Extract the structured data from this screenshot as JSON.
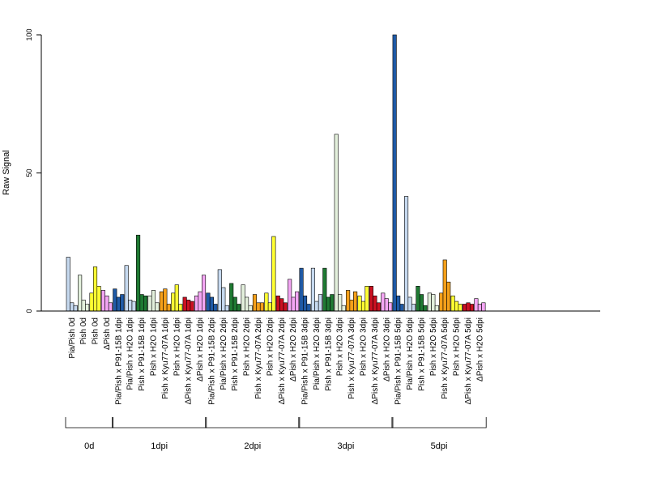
{
  "chart_data": {
    "type": "bar",
    "ylabel": "Raw Signal",
    "ylim": [
      0,
      100
    ],
    "yticks": [
      0,
      50,
      100
    ],
    "grid": false,
    "categories": [
      "Pia/Pish 0d",
      "Pish 0d",
      "Pish 0d",
      "ΔPish 0d",
      "Pia/Pish x P91-15B 1dpi",
      "Pia/Pish x H2O 1dpi",
      "Pish x P91-15B 1dpi",
      "Pish x H2O 1dpi",
      "Pish x Kyu77-07A 1dpi",
      "Pish x H2O 1dpi",
      "ΔPish x Kyu77-07A 1dpi",
      "ΔPish x H2O 1dpi",
      "Pia/Pish x P91-15B 2dpi",
      "Pia/Pish x H2O 2dpi",
      "Pish x P91-15B 2dpi",
      "Pish x H2O 2dpi",
      "Pish x Kyu77-07A 2dpi",
      "Pish x H2O 2dpi",
      "ΔPish x Kyu77-07A 2dpi",
      "ΔPish x H2O 2dpi",
      "Pia/Pish x P91-15B 3dpi",
      "Pia/Pish x H2O 3dpi",
      "Pish x P91-15B 3dpi",
      "Pish x H2O 3dpi",
      "Pish x Kyu77-07A 3dpi",
      "Pish x H2O 3dpi",
      "ΔPish x Kyu77-07A 3dpi",
      "ΔPish x H2O 3dpi",
      "Pia/Pish x P91-15B 5dpi",
      "Pia/Pish x H2O 5dpi",
      "Pish x P91-15B 5dpi",
      "Pish x H2O 5dpi",
      "Pish x Kyu77-07A 5dpi",
      "Pish x H2O 5dpi",
      "ΔPish x Kyu77-07A 5dpi",
      "ΔPish x H2O 5dpi"
    ],
    "colors": [
      "#c6d9ef",
      "#e3f0dc",
      "#ffff33",
      "#f4a6f4",
      "#1f5aa6",
      "#c6d9ef",
      "#1f7a33",
      "#e3f0dc",
      "#f5a01a",
      "#ffff33",
      "#cc1122",
      "#f4a6f4",
      "#1f5aa6",
      "#c6d9ef",
      "#1f7a33",
      "#e3f0dc",
      "#f5a01a",
      "#ffff33",
      "#cc1122",
      "#f4a6f4",
      "#1f5aa6",
      "#c6d9ef",
      "#1f7a33",
      "#e3f0dc",
      "#f5a01a",
      "#ffff33",
      "#cc1122",
      "#f4a6f4",
      "#1f5aa6",
      "#c6d9ef",
      "#1f7a33",
      "#e3f0dc",
      "#f5a01a",
      "#ffff33",
      "#cc1122",
      "#f4a6f4"
    ],
    "values": [
      [
        19.5,
        3,
        2
      ],
      [
        13,
        4,
        2.5
      ],
      [
        6.5,
        16,
        9
      ],
      [
        7.5,
        5.5,
        3
      ],
      [
        8,
        5,
        6
      ],
      [
        16.5,
        4,
        3.5
      ],
      [
        27.5,
        6,
        5.5
      ],
      [
        5.5,
        7.5,
        3
      ],
      [
        7,
        8,
        2.5
      ],
      [
        6.5,
        9.5,
        2.5
      ],
      [
        5,
        4,
        3.5
      ],
      [
        5.5,
        7,
        13
      ],
      [
        6.5,
        5,
        2.5
      ],
      [
        15,
        8.5,
        2
      ],
      [
        10,
        5,
        2.5
      ],
      [
        9.5,
        5,
        2
      ],
      [
        6,
        3,
        3
      ],
      [
        6.5,
        3,
        27
      ],
      [
        5.5,
        4.5,
        3
      ],
      [
        11.5,
        5,
        7
      ],
      [
        15.5,
        5.5,
        2.5
      ],
      [
        15.5,
        3.5,
        6
      ],
      [
        15.5,
        5,
        6
      ],
      [
        64,
        6,
        2
      ],
      [
        7.5,
        4,
        7
      ],
      [
        5.5,
        3.5,
        9
      ],
      [
        9,
        5.5,
        3
      ],
      [
        6.5,
        4.5,
        3
      ],
      [
        100,
        5.5,
        2.5
      ],
      [
        41.5,
        5,
        2.5
      ],
      [
        9,
        6,
        2
      ],
      [
        6.5,
        6,
        2
      ],
      [
        6.5,
        18.5,
        10.5
      ],
      [
        5.5,
        3.5,
        2.5
      ],
      [
        2.5,
        3,
        2.5
      ],
      [
        4.5,
        2.5,
        3
      ]
    ],
    "groups": [
      {
        "label": "0d",
        "start": 0,
        "end": 3
      },
      {
        "label": "1dpi",
        "start": 4,
        "end": 11
      },
      {
        "label": "2dpi",
        "start": 12,
        "end": 19
      },
      {
        "label": "3dpi",
        "start": 20,
        "end": 27
      },
      {
        "label": "5dpi",
        "start": 28,
        "end": 35
      }
    ]
  }
}
